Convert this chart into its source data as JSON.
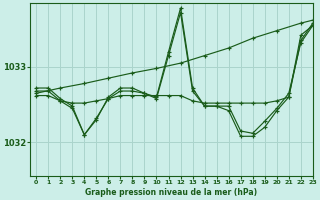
{
  "title": "Graphe pression niveau de la mer (hPa)",
  "background_color": "#cceee8",
  "grid_color": "#aad4cc",
  "line_color": "#1a5c1a",
  "xlim": [
    -0.5,
    23
  ],
  "ylim": [
    1031.55,
    1033.85
  ],
  "yticks": [
    1032,
    1033
  ],
  "xticks": [
    0,
    1,
    2,
    3,
    4,
    5,
    6,
    7,
    8,
    9,
    10,
    11,
    12,
    13,
    14,
    15,
    16,
    17,
    18,
    19,
    20,
    21,
    22,
    23
  ],
  "series": [
    {
      "x": [
        0,
        2,
        4,
        6,
        8,
        10,
        12,
        14,
        16,
        18,
        20,
        22,
        23
      ],
      "y": [
        1032.65,
        1032.72,
        1032.78,
        1032.85,
        1032.92,
        1032.98,
        1033.05,
        1033.15,
        1033.25,
        1033.38,
        1033.48,
        1033.58,
        1033.62
      ]
    },
    {
      "x": [
        0,
        1,
        2,
        3,
        4,
        5,
        6,
        7,
        8,
        9,
        10,
        11,
        12,
        13,
        14,
        15,
        16,
        17,
        18,
        19,
        20,
        21,
        22,
        23
      ],
      "y": [
        1032.72,
        1032.72,
        1032.58,
        1032.48,
        1032.1,
        1032.3,
        1032.6,
        1032.72,
        1032.72,
        1032.65,
        1032.6,
        1033.2,
        1033.78,
        1032.72,
        1032.48,
        1032.48,
        1032.42,
        1032.08,
        1032.08,
        1032.2,
        1032.42,
        1032.6,
        1033.35,
        1033.58
      ]
    },
    {
      "x": [
        0,
        1,
        2,
        3,
        4,
        5,
        6,
        7,
        8,
        9,
        10,
        11,
        12,
        13,
        14,
        15,
        16,
        17,
        18,
        19,
        20,
        21,
        22,
        23
      ],
      "y": [
        1032.68,
        1032.68,
        1032.55,
        1032.45,
        1032.1,
        1032.32,
        1032.58,
        1032.68,
        1032.68,
        1032.65,
        1032.58,
        1033.15,
        1033.72,
        1032.68,
        1032.48,
        1032.48,
        1032.48,
        1032.15,
        1032.12,
        1032.28,
        1032.45,
        1032.65,
        1033.32,
        1033.55
      ]
    },
    {
      "x": [
        0,
        1,
        2,
        3,
        4,
        5,
        6,
        7,
        8,
        9,
        10,
        11,
        12,
        13,
        14,
        15,
        16,
        17,
        18,
        19,
        20,
        21,
        22,
        23
      ],
      "y": [
        1032.62,
        1032.62,
        1032.55,
        1032.52,
        1032.52,
        1032.55,
        1032.58,
        1032.62,
        1032.62,
        1032.62,
        1032.62,
        1032.62,
        1032.62,
        1032.55,
        1032.52,
        1032.52,
        1032.52,
        1032.52,
        1032.52,
        1032.52,
        1032.55,
        1032.6,
        1033.42,
        1033.55
      ]
    }
  ]
}
